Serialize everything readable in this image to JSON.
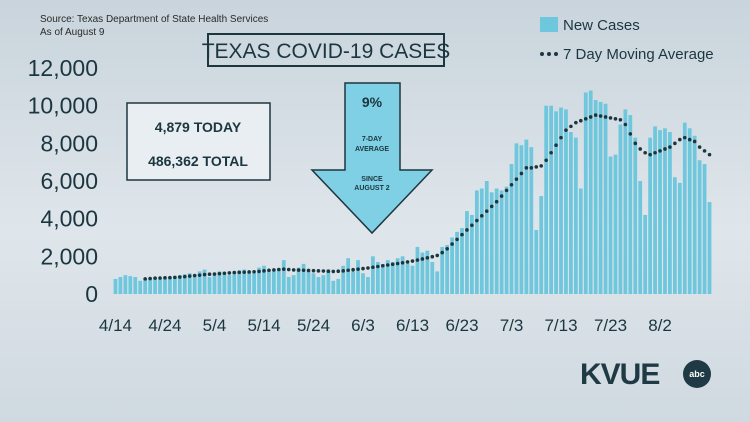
{
  "source_line1": "Source: Texas Department of State Health Services",
  "source_line2": "As of August 9",
  "title": "TEXAS COVID-19 CASES",
  "stats": {
    "today": "4,879 TODAY",
    "total": "486,362 TOTAL"
  },
  "callout": {
    "pct": "9%",
    "line1": "7-DAY",
    "line2": "AVERAGE",
    "line3": "SINCE",
    "line4": "AUGUST 2"
  },
  "logo": {
    "text": "KVUE",
    "badge": "abc"
  },
  "colors": {
    "bars": "#6ec7dd",
    "avg": "#1c3640",
    "callout": "#7fd0e4"
  },
  "chart_data": {
    "type": "bar",
    "x_start": "4/14",
    "x_end": "8/9",
    "xtick_labels": [
      "4/14",
      "4/24",
      "5/4",
      "5/14",
      "5/24",
      "6/3",
      "6/13",
      "6/23",
      "7/3",
      "7/13",
      "7/23",
      "8/2"
    ],
    "ytick_labels": [
      "0",
      "2,000",
      "4,000",
      "6,000",
      "8,000",
      "10,000",
      "12,000"
    ],
    "ylim": [
      0,
      12000
    ],
    "grid": false,
    "legend_position": "top-right",
    "series": [
      {
        "name": "New Cases",
        "values": [
          800,
          900,
          1000,
          950,
          900,
          700,
          800,
          850,
          900,
          800,
          850,
          900,
          950,
          1000,
          1050,
          1100,
          1000,
          1200,
          1300,
          900,
          1100,
          1200,
          1150,
          1000,
          1200,
          1250,
          1300,
          1200,
          1100,
          1400,
          1500,
          1300,
          1250,
          1350,
          1800,
          900,
          1000,
          1400,
          1600,
          1200,
          1100,
          900,
          1000,
          1300,
          700,
          800,
          1500,
          1900,
          1200,
          1800,
          1100,
          900,
          2000,
          1700,
          1600,
          1800,
          1700,
          1900,
          2000,
          1600,
          1500,
          2500,
          2200,
          2300,
          1700,
          1200,
          2500,
          2600,
          3000,
          3300,
          3500,
          4400,
          4200,
          5500,
          5600,
          6000,
          5400,
          5600,
          5500,
          5700,
          6900,
          8000,
          7900,
          8200,
          7800,
          3400,
          5200,
          10000,
          10000,
          9700,
          9900,
          9800,
          8600,
          8300,
          5600,
          10700,
          10800,
          10300,
          10200,
          10100,
          7300,
          7400,
          9000,
          9800,
          9500,
          8300,
          6000,
          4200,
          8300,
          8900,
          8700,
          8800,
          8600,
          6200,
          5900,
          9100,
          8800,
          8400,
          7100,
          6900,
          4879
        ]
      },
      {
        "name": "7 Day Moving Average",
        "values": [
          null,
          null,
          null,
          null,
          null,
          null,
          800,
          820,
          840,
          850,
          860,
          870,
          880,
          900,
          920,
          950,
          980,
          1000,
          1030,
          1050,
          1060,
          1080,
          1100,
          1120,
          1140,
          1150,
          1160,
          1170,
          1180,
          1200,
          1230,
          1260,
          1280,
          1300,
          1320,
          1300,
          1280,
          1270,
          1260,
          1250,
          1240,
          1230,
          1220,
          1210,
          1200,
          1210,
          1230,
          1260,
          1290,
          1320,
          1350,
          1380,
          1420,
          1460,
          1500,
          1540,
          1580,
          1620,
          1660,
          1700,
          1750,
          1800,
          1860,
          1920,
          1980,
          2050,
          2200,
          2400,
          2650,
          2900,
          3150,
          3400,
          3650,
          3900,
          4150,
          4400,
          4650,
          4900,
          5200,
          5500,
          5800,
          6100,
          6400,
          6700,
          6700,
          6750,
          6800,
          7100,
          7500,
          7900,
          8300,
          8700,
          8900,
          9100,
          9200,
          9300,
          9400,
          9500,
          9450,
          9400,
          9350,
          9300,
          9250,
          9000,
          8500,
          8000,
          7700,
          7500,
          7400,
          7500,
          7600,
          7700,
          7800,
          8000,
          8200,
          8300,
          8200,
          8100,
          7800,
          7600,
          7400
        ]
      }
    ]
  }
}
